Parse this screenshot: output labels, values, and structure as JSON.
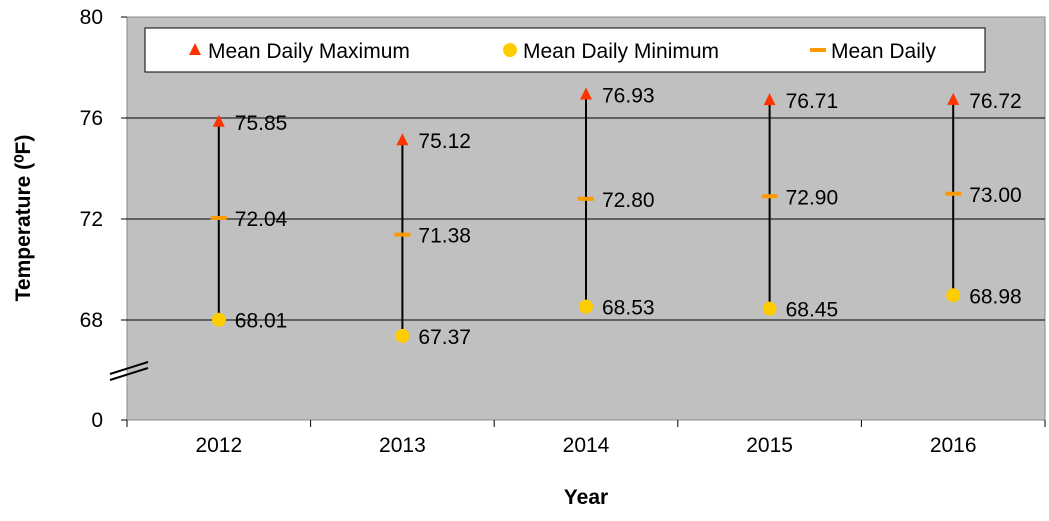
{
  "chart_data": {
    "type": "scatter",
    "title": "",
    "xlabel": "Year",
    "ylabel": "Temperature (⁰F)",
    "categories": [
      "2012",
      "2013",
      "2014",
      "2015",
      "2016"
    ],
    "y_ticks": [
      "0",
      "68",
      "72",
      "76",
      "80"
    ],
    "ylim": [
      64,
      80
    ],
    "axis_break": true,
    "grid": true,
    "legend_position": "top",
    "series": [
      {
        "name": "Mean Daily Maximum",
        "marker": "triangle",
        "color": "#ff3300",
        "values": [
          75.85,
          75.12,
          76.93,
          76.71,
          76.72
        ],
        "labels": [
          "75.85",
          "75.12",
          "76.93",
          "76.71",
          "76.72"
        ]
      },
      {
        "name": "Mean Daily Minimum",
        "marker": "circle",
        "color": "#ffcc00",
        "values": [
          68.01,
          67.37,
          68.53,
          68.45,
          68.98
        ],
        "labels": [
          "68.01",
          "67.37",
          "68.53",
          "68.45",
          "68.98"
        ]
      },
      {
        "name": "Mean Daily",
        "marker": "dash",
        "color": "#ff9900",
        "values": [
          72.04,
          71.38,
          72.8,
          72.9,
          73.0
        ],
        "labels": [
          "72.04",
          "71.38",
          "72.80",
          "72.90",
          "73.00"
        ]
      }
    ],
    "colors": {
      "plot_background": "#c0c0c0",
      "range_line": "#000000",
      "grid": "#000000"
    }
  }
}
